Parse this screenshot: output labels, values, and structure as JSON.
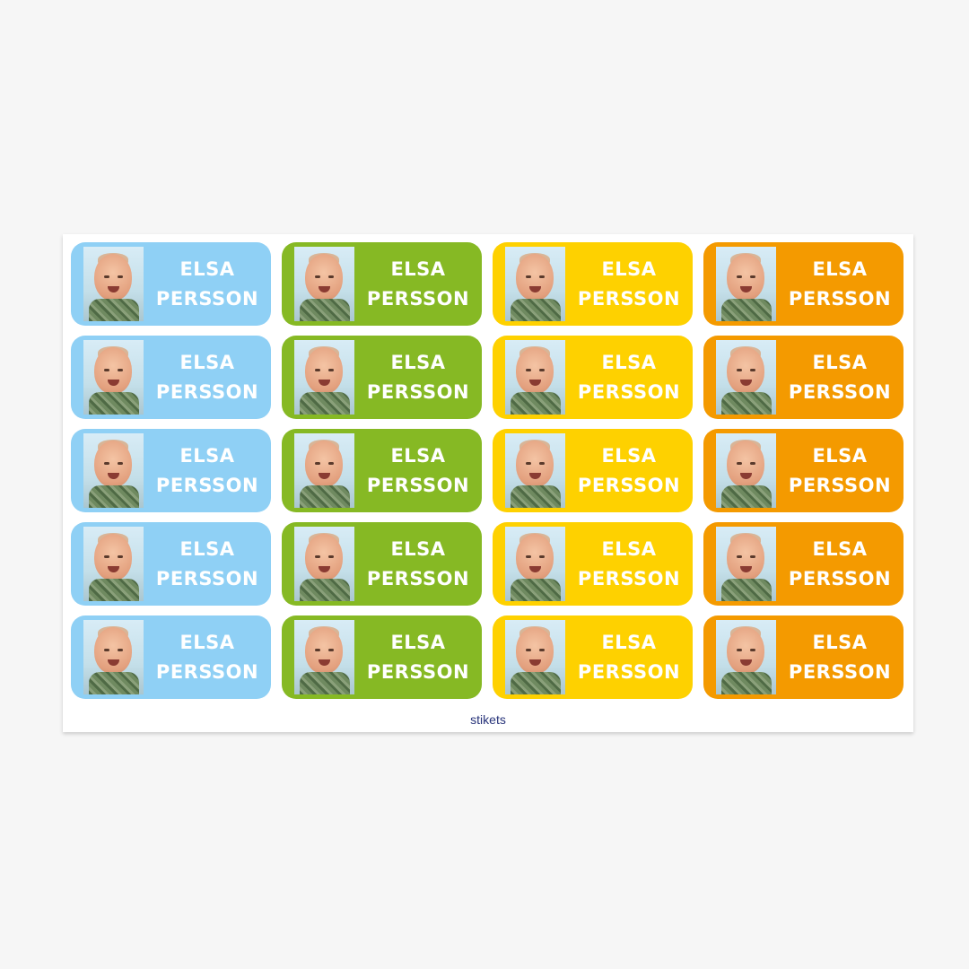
{
  "sheet": {
    "label_first_name": "ELSA",
    "label_last_name": "PERSSON",
    "rows": 5,
    "columns": [
      {
        "color_name": "light-blue",
        "color": "#8fd0f5"
      },
      {
        "color_name": "green",
        "color": "#86b924"
      },
      {
        "color_name": "yellow",
        "color": "#fed100"
      },
      {
        "color_name": "orange",
        "color": "#f49a00"
      }
    ],
    "brand": "stikets"
  }
}
